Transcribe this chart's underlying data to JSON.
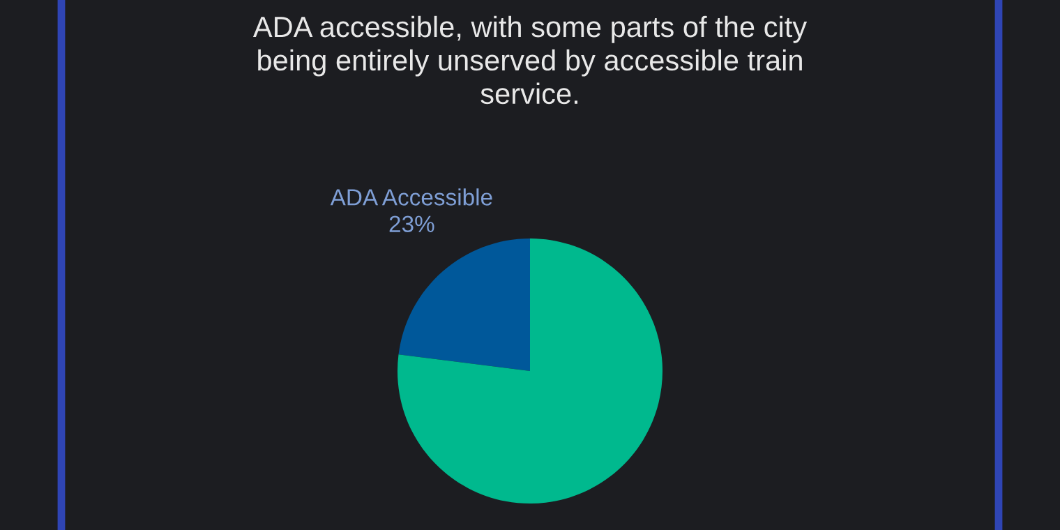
{
  "chart_data": {
    "type": "pie",
    "title": "ADA accessible, with some parts of the city\nbeing entirely unserved by accessible train\nservice.",
    "categories": [
      "ADA Accessible",
      null
    ],
    "values": [
      23,
      77
    ],
    "value_labels": [
      "23%",
      null
    ],
    "colors": [
      "#00589a",
      "#00b98e"
    ]
  }
}
